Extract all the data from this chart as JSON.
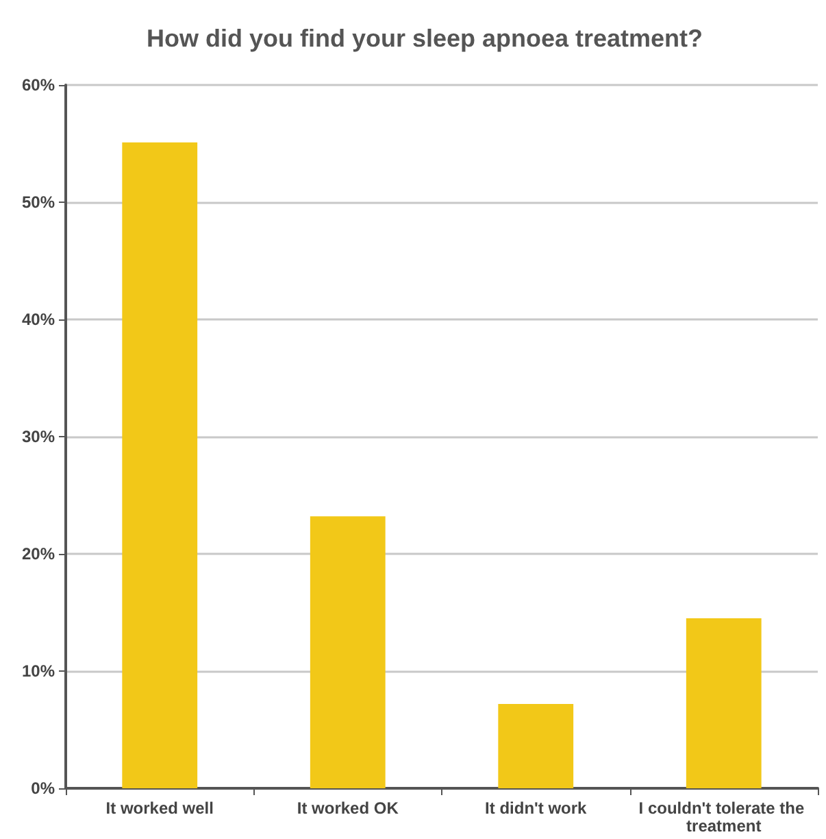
{
  "chart_data": {
    "type": "bar",
    "title": "How did you find your sleep apnoea treatment?",
    "categories": [
      "It worked well",
      "It worked OK",
      "It didn't work",
      "I couldn't tolerate the treatment"
    ],
    "values": [
      55.1,
      23.2,
      7.2,
      14.5
    ],
    "color": "#f2c818",
    "ylim": [
      0,
      60
    ],
    "yticks": [
      {
        "value": 0,
        "label": "0%"
      },
      {
        "value": 10,
        "label": "10%"
      },
      {
        "value": 20,
        "label": "20%"
      },
      {
        "value": 30,
        "label": "30%"
      },
      {
        "value": 40,
        "label": "40%"
      },
      {
        "value": 50,
        "label": "50%"
      },
      {
        "value": 60,
        "label": "60%"
      }
    ],
    "grid": "y"
  }
}
